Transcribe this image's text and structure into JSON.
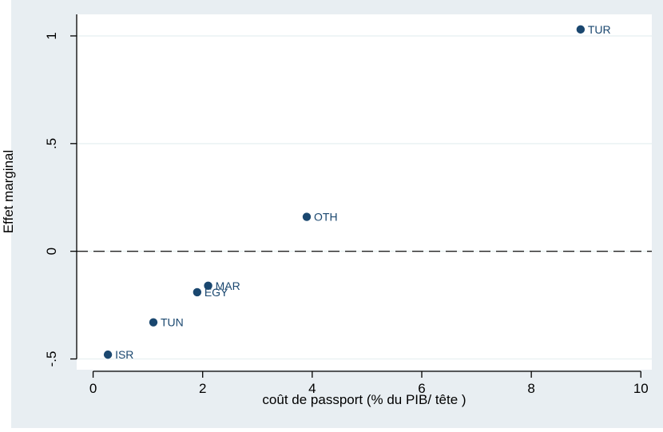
{
  "chart_data": {
    "type": "scatter",
    "xlabel": "coût de passport (% du PIB/ tête )",
    "ylabel": "Effet marginal",
    "xlim": [
      -0.3,
      10.2
    ],
    "ylim": [
      -0.55,
      1.1
    ],
    "xticks": [
      0,
      2,
      4,
      6,
      8,
      10
    ],
    "yticks": [
      -0.5,
      0,
      0.5,
      1
    ],
    "ytick_labels": [
      "-.5",
      "0",
      ".5",
      "1"
    ],
    "reference_line": {
      "y": 0,
      "style": "dashed"
    },
    "grid": "horizontal",
    "points": [
      {
        "label": "TUR",
        "x": 8.9,
        "y": 1.03
      },
      {
        "label": "OTH",
        "x": 3.9,
        "y": 0.16
      },
      {
        "label": "MAR",
        "x": 2.1,
        "y": -0.16
      },
      {
        "label": "EGY",
        "x": 1.9,
        "y": -0.19
      },
      {
        "label": "TUN",
        "x": 1.1,
        "y": -0.33
      },
      {
        "label": "ISR",
        "x": 0.27,
        "y": -0.48
      }
    ],
    "colors": {
      "background": "#e8eef2",
      "plot_area": "#ffffff",
      "marker": "#1a476f",
      "label": "#1a476f",
      "grid": "#eaf2f3",
      "axis": "#000000"
    }
  }
}
